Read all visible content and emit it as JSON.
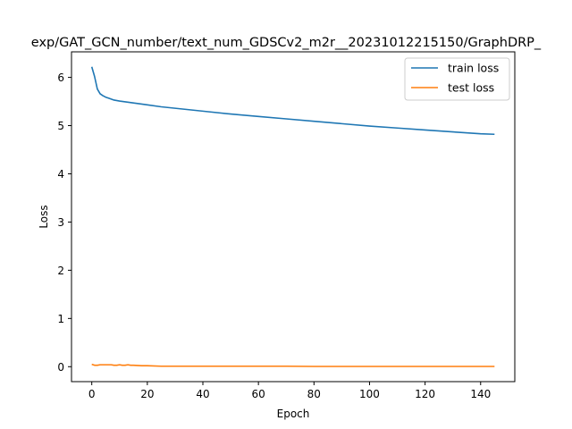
{
  "chart_data": {
    "type": "line",
    "title": "exp/GAT_GCN_number/text_num_GDSCv2_m2r__20231012215150/GraphDRP_",
    "xlabel": "Epoch",
    "ylabel": "Loss",
    "xlim": [
      -7.3,
      152.3
    ],
    "ylim": [
      -0.31,
      6.53
    ],
    "xticks": [
      0,
      20,
      40,
      60,
      80,
      100,
      120,
      140
    ],
    "yticks": [
      0,
      1,
      2,
      3,
      4,
      5,
      6
    ],
    "grid": false,
    "legend_position": "top-right",
    "series": [
      {
        "name": "train loss",
        "color": "#1f77b4",
        "x": [
          0,
          1,
          2,
          3,
          4,
          5,
          6,
          8,
          10,
          15,
          20,
          25,
          30,
          35,
          40,
          50,
          60,
          70,
          80,
          90,
          100,
          110,
          120,
          130,
          140,
          145
        ],
        "y": [
          6.22,
          6.02,
          5.76,
          5.66,
          5.62,
          5.59,
          5.57,
          5.53,
          5.51,
          5.47,
          5.43,
          5.39,
          5.36,
          5.33,
          5.3,
          5.24,
          5.19,
          5.14,
          5.09,
          5.04,
          4.99,
          4.95,
          4.91,
          4.87,
          4.83,
          4.82
        ]
      },
      {
        "name": "test loss",
        "color": "#ff7f0e",
        "x": [
          0,
          1,
          2,
          3,
          4,
          5,
          6,
          7,
          8,
          9,
          10,
          11,
          12,
          13,
          14,
          15,
          18,
          20,
          25,
          30,
          35,
          40,
          50,
          60,
          70,
          80,
          90,
          100,
          110,
          120,
          130,
          140,
          145
        ],
        "y": [
          0.05,
          0.03,
          0.03,
          0.04,
          0.04,
          0.04,
          0.04,
          0.04,
          0.03,
          0.03,
          0.04,
          0.03,
          0.03,
          0.04,
          0.03,
          0.03,
          0.02,
          0.02,
          0.01,
          0.01,
          0.01,
          0.01,
          0.01,
          0.01,
          0.01,
          0.005,
          0.005,
          0.005,
          0.005,
          0.005,
          0.005,
          0.005,
          0.005
        ]
      }
    ]
  }
}
